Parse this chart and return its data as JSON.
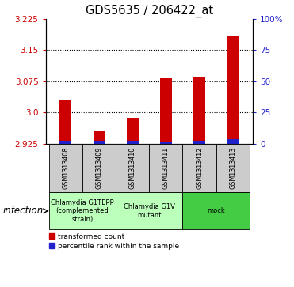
{
  "title": "GDS5635 / 206422_at",
  "samples": [
    "GSM1313408",
    "GSM1313409",
    "GSM1313410",
    "GSM1313411",
    "GSM1313412",
    "GSM1313413"
  ],
  "red_values": [
    3.03,
    2.955,
    2.987,
    3.082,
    3.085,
    3.182
  ],
  "blue_pct": [
    2.0,
    2.5,
    2.5,
    1.5,
    2.5,
    3.5
  ],
  "baseline": 2.925,
  "ylim_left": [
    2.925,
    3.225
  ],
  "yticks_left": [
    2.925,
    3.0,
    3.075,
    3.15,
    3.225
  ],
  "ylim_right": [
    0,
    100
  ],
  "yticks_right": [
    0,
    25,
    50,
    75,
    100
  ],
  "ytick_right_labels": [
    "0",
    "25",
    "50",
    "75",
    "100%"
  ],
  "groups": [
    {
      "label": "Chlamydia G1TEPP\n(complemented\nstrain)",
      "cols": [
        0,
        1
      ],
      "color": "#bbffbb"
    },
    {
      "label": "Chlamydia G1V\nmutant",
      "cols": [
        2,
        3
      ],
      "color": "#bbffbb"
    },
    {
      "label": "mock",
      "cols": [
        4,
        5
      ],
      "color": "#44cc44"
    }
  ],
  "infection_label": "infection",
  "legend_red": "transformed count",
  "legend_blue": "percentile rank within the sample",
  "red_color": "#cc0000",
  "blue_color": "#2222cc",
  "bar_width": 0.35,
  "bg_color": "#ffffff",
  "sample_box_color": "#cccccc",
  "gridline_color": "#000000",
  "tick_fontsize": 7.5,
  "title_fontsize": 10.5
}
